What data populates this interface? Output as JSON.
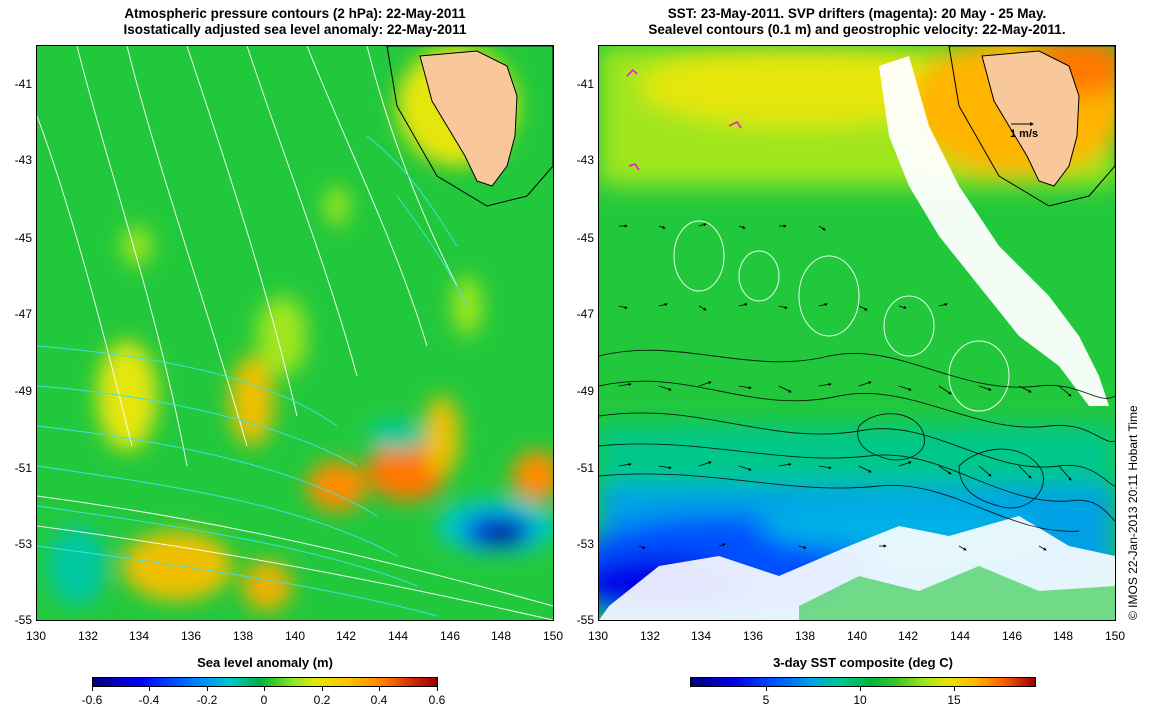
{
  "left_panel": {
    "title_line1": "Atmospheric pressure contours (2 hPa): 22-May-2011",
    "title_line2": "Isostatically adjusted sea level anomaly: 22-May-2011",
    "y_ticks": [
      "-41",
      "-43",
      "-45",
      "-47",
      "-49",
      "-51",
      "-53",
      "-55"
    ],
    "x_ticks": [
      "130",
      "132",
      "134",
      "136",
      "138",
      "140",
      "142",
      "144",
      "146",
      "148",
      "150"
    ],
    "colorbar": {
      "label": "Sea level anomaly (m)",
      "ticks": [
        "-0.6",
        "-0.4",
        "-0.2",
        "0",
        "0.2",
        "0.4",
        "0.6"
      ]
    }
  },
  "right_panel": {
    "title_line1": "SST: 23-May-2011. SVP drifters (magenta): 20 May - 25 May.",
    "title_line2": "Sealevel contours (0.1 m) and geostrophic velocity: 22-May-2011.",
    "y_ticks": [
      "-41",
      "-43",
      "-45",
      "-47",
      "-49",
      "-51",
      "-53",
      "-55"
    ],
    "x_ticks": [
      "130",
      "132",
      "134",
      "136",
      "138",
      "140",
      "142",
      "144",
      "146",
      "148",
      "150"
    ],
    "scale_label": "1 m/s",
    "colorbar": {
      "label": "3-day SST composite (deg C)",
      "ticks": [
        "5",
        "10",
        "15"
      ]
    }
  },
  "credit": "© IMOS 22-Jan-2013 20:11 Hobart Time",
  "colors": {
    "land": "#f8c89a",
    "background_green": "#22c83c",
    "contour_white": "#ffffff",
    "contour_cyan": "#40e0e0",
    "drifter_magenta": "#ff00ff"
  }
}
